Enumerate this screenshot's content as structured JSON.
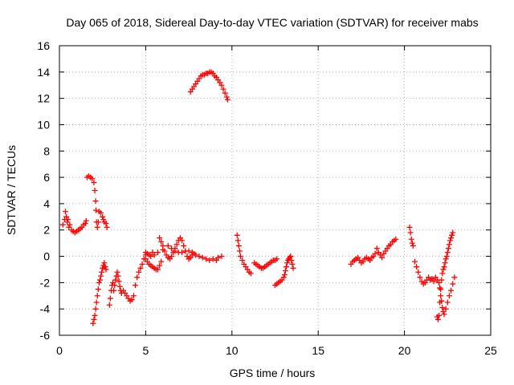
{
  "chart_data": {
    "type": "scatter",
    "title": "Day 065 of 2018, Sidereal Day-to-day VTEC variation (SDTVAR) for receiver mabs",
    "xlabel": "GPS time / hours",
    "ylabel": "SDTVAR / TECUs",
    "xlim": [
      0,
      25
    ],
    "ylim": [
      -6,
      16
    ],
    "xticks": [
      0,
      5,
      10,
      15,
      20,
      25
    ],
    "yticks": [
      -6,
      -4,
      -2,
      0,
      2,
      4,
      6,
      8,
      10,
      12,
      14,
      16
    ],
    "grid": true,
    "marker": "+",
    "series": [
      {
        "name": "SDTVAR",
        "color": "#ff0000",
        "points": [
          [
            0.2,
            2.4
          ],
          [
            0.3,
            2.8
          ],
          [
            0.35,
            3.4
          ],
          [
            0.4,
            3.0
          ],
          [
            0.45,
            2.6
          ],
          [
            0.5,
            2.8
          ],
          [
            0.55,
            2.2
          ],
          [
            0.6,
            2.4
          ],
          [
            0.7,
            2.0
          ],
          [
            0.8,
            1.9
          ],
          [
            0.9,
            1.8
          ],
          [
            1.0,
            1.9
          ],
          [
            1.1,
            2.0
          ],
          [
            1.2,
            2.1
          ],
          [
            1.3,
            2.2
          ],
          [
            1.4,
            2.4
          ],
          [
            1.5,
            2.5
          ],
          [
            1.55,
            2.7
          ],
          [
            1.6,
            6.0
          ],
          [
            1.7,
            6.1
          ],
          [
            1.8,
            6.0
          ],
          [
            1.9,
            5.9
          ],
          [
            2.0,
            5.6
          ],
          [
            2.05,
            5.0
          ],
          [
            2.1,
            4.2
          ],
          [
            2.12,
            3.5
          ],
          [
            2.15,
            2.6
          ],
          [
            2.2,
            2.2
          ],
          [
            2.25,
            2.6
          ],
          [
            2.3,
            3.4
          ],
          [
            2.4,
            3.3
          ],
          [
            2.5,
            3.0
          ],
          [
            2.55,
            2.8
          ],
          [
            2.6,
            2.6
          ],
          [
            2.7,
            2.5
          ],
          [
            2.75,
            2.2
          ],
          [
            1.95,
            -5.1
          ],
          [
            2.0,
            -4.8
          ],
          [
            2.05,
            -4.5
          ],
          [
            2.1,
            -4.0
          ],
          [
            2.15,
            -3.5
          ],
          [
            2.2,
            -3.0
          ],
          [
            2.25,
            -2.5
          ],
          [
            2.3,
            -2.0
          ],
          [
            2.35,
            -1.8
          ],
          [
            2.4,
            -1.5
          ],
          [
            2.45,
            -1.2
          ],
          [
            2.5,
            -0.9
          ],
          [
            2.55,
            -0.7
          ],
          [
            2.6,
            -0.5
          ],
          [
            2.65,
            -0.8
          ],
          [
            2.7,
            -1.0
          ],
          [
            2.9,
            -3.7
          ],
          [
            2.95,
            -3.2
          ],
          [
            3.0,
            -2.6
          ],
          [
            3.05,
            -2.2
          ],
          [
            3.1,
            -2.0
          ],
          [
            3.15,
            -2.6
          ],
          [
            3.2,
            -2.2
          ],
          [
            3.25,
            -1.8
          ],
          [
            3.3,
            -1.5
          ],
          [
            3.35,
            -1.2
          ],
          [
            3.4,
            -1.5
          ],
          [
            3.45,
            -1.9
          ],
          [
            3.5,
            -2.3
          ],
          [
            3.55,
            -2.6
          ],
          [
            3.6,
            -2.8
          ],
          [
            3.7,
            -2.6
          ],
          [
            3.8,
            -2.8
          ],
          [
            3.9,
            -3.0
          ],
          [
            4.0,
            -3.2
          ],
          [
            4.1,
            -3.4
          ],
          [
            4.2,
            -3.3
          ],
          [
            4.3,
            -3.0
          ],
          [
            4.4,
            -2.2
          ],
          [
            4.5,
            -1.6
          ],
          [
            4.6,
            -1.2
          ],
          [
            4.7,
            -0.9
          ],
          [
            4.8,
            -0.6
          ],
          [
            4.9,
            -0.2
          ],
          [
            5.0,
            0.1
          ],
          [
            5.0,
            -0.2
          ],
          [
            5.1,
            -0.4
          ],
          [
            5.2,
            -0.6
          ],
          [
            5.3,
            -0.7
          ],
          [
            5.4,
            -0.8
          ],
          [
            5.5,
            -0.9
          ],
          [
            5.6,
            -1.0
          ],
          [
            5.7,
            -1.0
          ],
          [
            5.8,
            -0.7
          ],
          [
            5.9,
            -0.4
          ],
          [
            5.0,
            0.3
          ],
          [
            5.1,
            0.2
          ],
          [
            5.2,
            0.1
          ],
          [
            5.3,
            0.0
          ],
          [
            5.4,
            0.3
          ],
          [
            5.8,
            1.4
          ],
          [
            5.9,
            1.1
          ],
          [
            6.0,
            0.8
          ],
          [
            6.1,
            0.4
          ],
          [
            6.2,
            0.1
          ],
          [
            6.3,
            -0.1
          ],
          [
            6.4,
            -0.2
          ],
          [
            6.5,
            0.0
          ],
          [
            6.6,
            0.3
          ],
          [
            6.7,
            0.6
          ],
          [
            6.8,
            0.9
          ],
          [
            6.9,
            1.2
          ],
          [
            7.0,
            1.4
          ],
          [
            7.1,
            1.2
          ],
          [
            7.2,
            0.8
          ],
          [
            7.3,
            0.4
          ],
          [
            7.4,
            0.0
          ],
          [
            7.5,
            -0.2
          ],
          [
            7.6,
            -0.1
          ],
          [
            7.7,
            0.1
          ],
          [
            7.8,
            0.2
          ],
          [
            5.5,
            0.1
          ],
          [
            5.7,
            0.3
          ],
          [
            6.0,
            0.5
          ],
          [
            6.3,
            0.8
          ],
          [
            6.5,
            0.6
          ],
          [
            6.7,
            0.4
          ],
          [
            6.9,
            0.3
          ],
          [
            7.1,
            0.3
          ],
          [
            7.3,
            0.4
          ],
          [
            7.5,
            0.4
          ],
          [
            7.7,
            0.3
          ],
          [
            7.9,
            0.1
          ],
          [
            8.1,
            0.0
          ],
          [
            8.3,
            -0.1
          ],
          [
            8.5,
            -0.2
          ],
          [
            8.7,
            -0.3
          ],
          [
            8.9,
            -0.2
          ],
          [
            9.1,
            -0.3
          ],
          [
            9.2,
            -0.1
          ],
          [
            9.4,
            0.0
          ],
          [
            7.6,
            12.5
          ],
          [
            7.7,
            12.7
          ],
          [
            7.8,
            12.9
          ],
          [
            7.9,
            13.1
          ],
          [
            8.0,
            13.3
          ],
          [
            8.1,
            13.5
          ],
          [
            8.2,
            13.7
          ],
          [
            8.3,
            13.8
          ],
          [
            8.4,
            13.8
          ],
          [
            8.5,
            13.9
          ],
          [
            8.6,
            13.9
          ],
          [
            8.7,
            14.0
          ],
          [
            8.8,
            14.0
          ],
          [
            8.9,
            13.9
          ],
          [
            9.0,
            13.7
          ],
          [
            9.1,
            13.6
          ],
          [
            9.2,
            13.4
          ],
          [
            9.3,
            13.2
          ],
          [
            9.4,
            13.0
          ],
          [
            9.5,
            12.7
          ],
          [
            9.6,
            12.4
          ],
          [
            9.7,
            12.1
          ],
          [
            9.75,
            11.9
          ],
          [
            10.3,
            1.6
          ],
          [
            10.35,
            1.2
          ],
          [
            10.4,
            0.8
          ],
          [
            10.45,
            0.4
          ],
          [
            10.5,
            0.0
          ],
          [
            10.6,
            -0.3
          ],
          [
            10.7,
            -0.6
          ],
          [
            10.8,
            -0.8
          ],
          [
            10.9,
            -1.0
          ],
          [
            11.0,
            -1.2
          ],
          [
            11.1,
            -1.3
          ],
          [
            11.3,
            -0.5
          ],
          [
            11.4,
            -0.6
          ],
          [
            11.5,
            -0.7
          ],
          [
            11.6,
            -0.8
          ],
          [
            11.7,
            -0.9
          ],
          [
            11.8,
            -0.9
          ],
          [
            11.9,
            -0.8
          ],
          [
            12.0,
            -0.7
          ],
          [
            12.1,
            -0.6
          ],
          [
            12.2,
            -0.5
          ],
          [
            12.3,
            -0.4
          ],
          [
            12.4,
            -0.3
          ],
          [
            12.5,
            -0.3
          ],
          [
            12.6,
            -0.2
          ],
          [
            12.5,
            -2.2
          ],
          [
            12.6,
            -2.1
          ],
          [
            12.7,
            -2.0
          ],
          [
            12.8,
            -1.9
          ],
          [
            12.9,
            -1.8
          ],
          [
            13.0,
            -1.6
          ],
          [
            13.05,
            -1.4
          ],
          [
            13.1,
            -1.1
          ],
          [
            13.15,
            -0.8
          ],
          [
            13.2,
            -0.5
          ],
          [
            13.25,
            -0.3
          ],
          [
            13.3,
            -0.2
          ],
          [
            13.35,
            -0.1
          ],
          [
            13.4,
            0.0
          ],
          [
            13.45,
            -0.3
          ],
          [
            13.5,
            -0.6
          ],
          [
            13.55,
            -0.9
          ],
          [
            16.9,
            -0.6
          ],
          [
            17.0,
            -0.4
          ],
          [
            17.1,
            -0.3
          ],
          [
            17.2,
            -0.2
          ],
          [
            17.3,
            -0.1
          ],
          [
            17.4,
            -0.3
          ],
          [
            17.5,
            -0.5
          ],
          [
            17.6,
            -0.4
          ],
          [
            17.7,
            -0.2
          ],
          [
            17.8,
            -0.1
          ],
          [
            17.9,
            -0.2
          ],
          [
            18.0,
            -0.3
          ],
          [
            18.1,
            -0.1
          ],
          [
            18.2,
            0.0
          ],
          [
            18.3,
            0.2
          ],
          [
            18.4,
            0.6
          ],
          [
            18.5,
            0.3
          ],
          [
            18.6,
            0.1
          ],
          [
            18.7,
            -0.1
          ],
          [
            18.8,
            0.2
          ],
          [
            18.9,
            0.4
          ],
          [
            19.0,
            0.6
          ],
          [
            19.1,
            0.8
          ],
          [
            19.2,
            0.9
          ],
          [
            19.3,
            1.1
          ],
          [
            19.4,
            1.2
          ],
          [
            19.5,
            1.3
          ],
          [
            20.3,
            2.2
          ],
          [
            20.35,
            1.8
          ],
          [
            20.4,
            1.3
          ],
          [
            20.45,
            1.0
          ],
          [
            20.5,
            0.8
          ],
          [
            20.6,
            -0.4
          ],
          [
            20.7,
            -0.8
          ],
          [
            20.8,
            -1.2
          ],
          [
            20.9,
            -1.6
          ],
          [
            21.0,
            -1.9
          ],
          [
            21.1,
            -2.1
          ],
          [
            21.2,
            -2.0
          ],
          [
            21.3,
            -1.8
          ],
          [
            21.4,
            -1.6
          ],
          [
            21.5,
            -1.8
          ],
          [
            21.6,
            -1.7
          ],
          [
            21.7,
            -1.9
          ],
          [
            21.8,
            -1.6
          ],
          [
            21.9,
            -4.6
          ],
          [
            21.95,
            -4.8
          ],
          [
            22.0,
            -4.5
          ],
          [
            22.05,
            -3.5
          ],
          [
            22.1,
            -2.5
          ],
          [
            22.15,
            -1.8
          ],
          [
            22.2,
            -1.3
          ],
          [
            22.25,
            -1.0
          ],
          [
            22.3,
            -0.8
          ],
          [
            22.35,
            -0.5
          ],
          [
            22.4,
            -0.2
          ],
          [
            22.45,
            0.0
          ],
          [
            22.5,
            0.3
          ],
          [
            22.55,
            0.6
          ],
          [
            22.6,
            0.9
          ],
          [
            22.65,
            1.2
          ],
          [
            22.7,
            1.4
          ],
          [
            22.75,
            1.6
          ],
          [
            22.8,
            1.8
          ],
          [
            21.9,
            -1.8
          ],
          [
            22.0,
            -2.0
          ],
          [
            22.05,
            -2.4
          ],
          [
            22.1,
            -3.0
          ],
          [
            22.15,
            -3.4
          ],
          [
            22.2,
            -3.9
          ],
          [
            22.25,
            -4.2
          ],
          [
            22.3,
            -4.4
          ],
          [
            22.4,
            -4.0
          ],
          [
            22.5,
            -3.5
          ],
          [
            22.6,
            -3.0
          ],
          [
            22.7,
            -2.6
          ],
          [
            22.8,
            -2.1
          ],
          [
            22.9,
            -1.6
          ]
        ]
      }
    ]
  }
}
